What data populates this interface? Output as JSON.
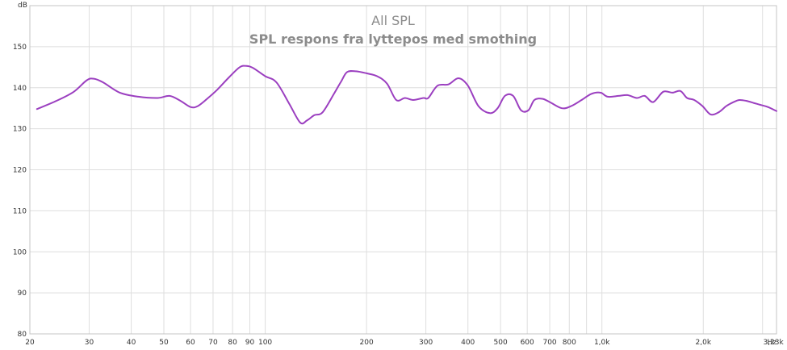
{
  "chart_data": {
    "type": "line",
    "title": "All SPL",
    "subtitle": "SPL respons fra lyttepos med smothing",
    "ylabel": "dB",
    "xunit": "Hz",
    "xscale": "log",
    "xlim": [
      20,
      3300
    ],
    "ylim": [
      80,
      160
    ],
    "grid": true,
    "line_color": "#9b3fc0",
    "yticks": [
      {
        "value": 80,
        "label": "80"
      },
      {
        "value": 90,
        "label": "90"
      },
      {
        "value": 100,
        "label": "100"
      },
      {
        "value": 110,
        "label": "110"
      },
      {
        "value": 120,
        "label": "120"
      },
      {
        "value": 130,
        "label": "130"
      },
      {
        "value": 140,
        "label": "140"
      },
      {
        "value": 150,
        "label": "150"
      }
    ],
    "xticks": [
      {
        "value": 20,
        "label": "20"
      },
      {
        "value": 30,
        "label": "30"
      },
      {
        "value": 40,
        "label": "40"
      },
      {
        "value": 50,
        "label": "50"
      },
      {
        "value": 60,
        "label": "60"
      },
      {
        "value": 70,
        "label": "70"
      },
      {
        "value": 80,
        "label": "80"
      },
      {
        "value": 90,
        "label": "90"
      },
      {
        "value": 100,
        "label": "100"
      },
      {
        "value": 200,
        "label": "200"
      },
      {
        "value": 300,
        "label": "300"
      },
      {
        "value": 400,
        "label": "400"
      },
      {
        "value": 500,
        "label": "500"
      },
      {
        "value": 600,
        "label": "600"
      },
      {
        "value": 700,
        "label": "700"
      },
      {
        "value": 800,
        "label": "800"
      },
      {
        "value": 1000,
        "label": "1,0k"
      },
      {
        "value": 2000,
        "label": "2,0k"
      },
      {
        "value": 3230,
        "label": "3,23k"
      }
    ],
    "series": [
      {
        "x": [
          21,
          24,
          27,
          29.5,
          31,
          33,
          37,
          42,
          48,
          52,
          56,
          60,
          63,
          67,
          72,
          78,
          84,
          88,
          92,
          100,
          108,
          118,
          127,
          133,
          140,
          148,
          160,
          168,
          175,
          186,
          200,
          215,
          230,
          245,
          260,
          275,
          295,
          305,
          325,
          350,
          375,
          400,
          430,
          465,
          490,
          515,
          545,
          575,
          605,
          630,
          665,
          700,
          760,
          810,
          870,
          930,
          990,
          1040,
          1120,
          1190,
          1270,
          1340,
          1420,
          1520,
          1620,
          1710,
          1790,
          1880,
          1990,
          2100,
          2220,
          2340,
          2460,
          2560,
          2680,
          2820,
          2960,
          3110,
          3300
        ],
        "y": [
          134.8,
          136.8,
          139.0,
          141.8,
          142.2,
          141.3,
          138.8,
          137.8,
          137.5,
          138.0,
          136.8,
          135.3,
          135.5,
          137.2,
          139.5,
          142.5,
          145.0,
          145.3,
          144.8,
          142.8,
          141.3,
          136.0,
          131.5,
          132.0,
          133.3,
          134.0,
          138.5,
          141.5,
          143.8,
          144.0,
          143.5,
          142.8,
          141.0,
          137.0,
          137.5,
          137.0,
          137.5,
          137.5,
          140.5,
          140.8,
          142.3,
          140.5,
          135.5,
          133.8,
          135.0,
          138.0,
          138.0,
          134.5,
          134.5,
          137.0,
          137.3,
          136.5,
          135.0,
          135.5,
          137.0,
          138.5,
          138.8,
          137.8,
          138.0,
          138.2,
          137.5,
          138.0,
          136.5,
          139.0,
          138.8,
          139.2,
          137.5,
          137.0,
          135.5,
          133.5,
          134.0,
          135.5,
          136.5,
          137.0,
          136.8,
          136.3,
          135.8,
          135.3,
          134.3
        ]
      }
    ]
  }
}
